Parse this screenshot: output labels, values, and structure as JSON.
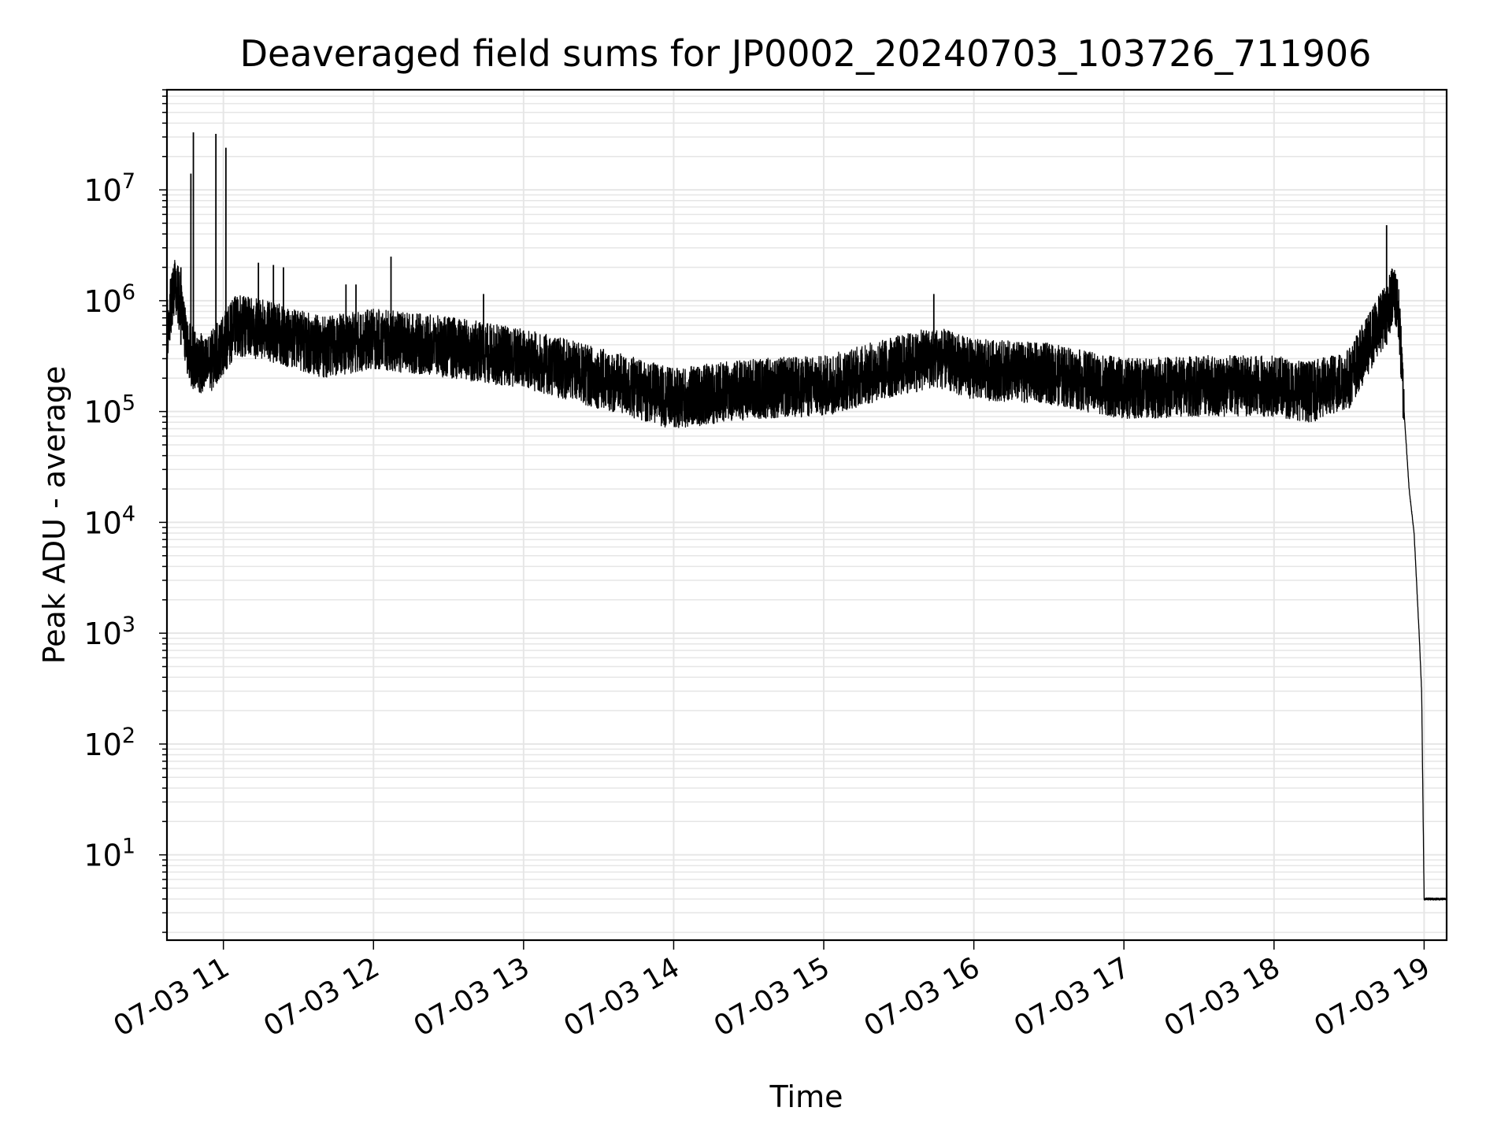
{
  "chart_data": {
    "type": "line",
    "title": "Deaveraged field sums for JP0002_20240703_103726_711906",
    "xlabel": "Time",
    "ylabel": "Peak ADU - average",
    "yscale": "log",
    "xlim": [
      "2024-07-03T10:37:26",
      "2024-07-03T19:09:00"
    ],
    "ylim": [
      1.7,
      80000000
    ],
    "x_ticks": [
      {
        "value": "2024-07-03T11:00",
        "label": "07-03 11"
      },
      {
        "value": "2024-07-03T12:00",
        "label": "07-03 12"
      },
      {
        "value": "2024-07-03T13:00",
        "label": "07-03 13"
      },
      {
        "value": "2024-07-03T14:00",
        "label": "07-03 14"
      },
      {
        "value": "2024-07-03T15:00",
        "label": "07-03 15"
      },
      {
        "value": "2024-07-03T16:00",
        "label": "07-03 16"
      },
      {
        "value": "2024-07-03T17:00",
        "label": "07-03 17"
      },
      {
        "value": "2024-07-03T18:00",
        "label": "07-03 18"
      },
      {
        "value": "2024-07-03T19:00",
        "label": "07-03 19"
      }
    ],
    "y_ticks": [
      {
        "value": 10,
        "base": "10",
        "exp": "1"
      },
      {
        "value": 100,
        "base": "10",
        "exp": "2"
      },
      {
        "value": 1000,
        "base": "10",
        "exp": "3"
      },
      {
        "value": 10000,
        "base": "10",
        "exp": "4"
      },
      {
        "value": 100000,
        "base": "10",
        "exp": "5"
      },
      {
        "value": 1000000,
        "base": "10",
        "exp": "6"
      },
      {
        "value": 10000000,
        "base": "10",
        "exp": "7"
      }
    ],
    "grid": "major and minor",
    "line_color": "#000000",
    "grid_color": "#e6e6e6",
    "series": [
      {
        "x": [
          "2024-07-03T10:37:26",
          "2024-07-03T10:40:00",
          "2024-07-03T10:42:00",
          "2024-07-03T10:44:00",
          "2024-07-03T10:46:00",
          "2024-07-03T10:48:00",
          "2024-07-03T10:50:00",
          "2024-07-03T10:53:00",
          "2024-07-03T10:56:00",
          "2024-07-03T10:58:00",
          "2024-07-03T11:05:00",
          "2024-07-03T11:15:00",
          "2024-07-03T11:25:00",
          "2024-07-03T11:40:00",
          "2024-07-03T12:00:00",
          "2024-07-03T12:30:00",
          "2024-07-03T13:00:00",
          "2024-07-03T13:30:00",
          "2024-07-03T14:00:00",
          "2024-07-03T14:30:00",
          "2024-07-03T15:00:00",
          "2024-07-03T15:30:00",
          "2024-07-03T15:45:00",
          "2024-07-03T16:00:00",
          "2024-07-03T16:30:00",
          "2024-07-03T17:00:00",
          "2024-07-03T17:30:00",
          "2024-07-03T18:00:00",
          "2024-07-03T18:15:00",
          "2024-07-03T18:30:00",
          "2024-07-03T18:40:00",
          "2024-07-03T18:45:00",
          "2024-07-03T18:48:00",
          "2024-07-03T18:50:00",
          "2024-07-03T18:52:00",
          "2024-07-03T18:54:00",
          "2024-07-03T18:56:00",
          "2024-07-03T18:58:00",
          "2024-07-03T18:59:00",
          "2024-07-03T19:00:00",
          "2024-07-03T19:09:00"
        ],
        "values": [
          500000,
          1300000,
          1100000,
          600000,
          350000,
          300000,
          280000,
          250000,
          300000,
          350000,
          600000,
          550000,
          480000,
          380000,
          450000,
          380000,
          300000,
          200000,
          130000,
          160000,
          170000,
          260000,
          310000,
          240000,
          220000,
          160000,
          170000,
          170000,
          150000,
          200000,
          500000,
          800000,
          1200000,
          700000,
          100000,
          20000,
          8000,
          1000,
          300,
          4,
          4
        ]
      }
    ],
    "spikes": [
      {
        "x": "2024-07-03T10:43:00",
        "y": 2000000
      },
      {
        "x": "2024-07-03T10:47:00",
        "y": 14000000
      },
      {
        "x": "2024-07-03T10:48:00",
        "y": 33000000
      },
      {
        "x": "2024-07-03T10:57:00",
        "y": 32000000
      },
      {
        "x": "2024-07-03T11:01:00",
        "y": 24000000
      },
      {
        "x": "2024-07-03T11:14:00",
        "y": 2200000
      },
      {
        "x": "2024-07-03T11:20:00",
        "y": 2100000
      },
      {
        "x": "2024-07-03T11:24:00",
        "y": 2000000
      },
      {
        "x": "2024-07-03T11:49:00",
        "y": 1400000
      },
      {
        "x": "2024-07-03T11:53:00",
        "y": 1400000
      },
      {
        "x": "2024-07-03T12:07:00",
        "y": 2500000
      },
      {
        "x": "2024-07-03T12:44:00",
        "y": 1150000
      },
      {
        "x": "2024-07-03T15:44:00",
        "y": 1150000
      },
      {
        "x": "2024-07-03T18:45:00",
        "y": 4800000
      }
    ]
  }
}
